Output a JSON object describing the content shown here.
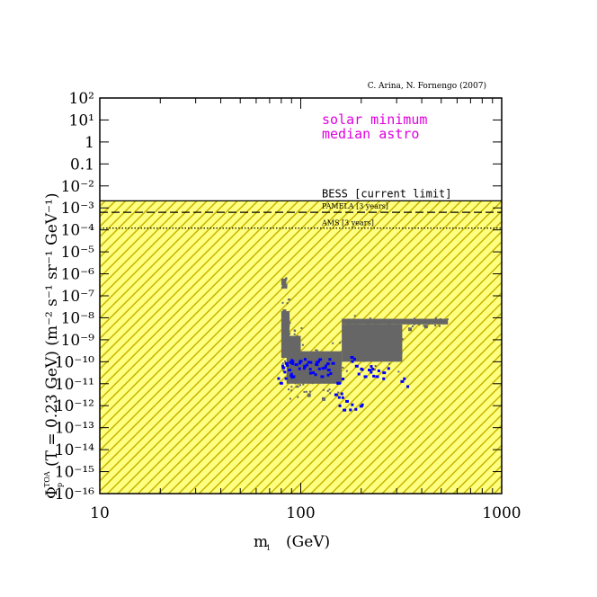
{
  "chart_data": {
    "type": "scatter",
    "credit": "C. Arina, N. Fornengo (2007)",
    "xlabel": "m_1 (GeV)",
    "ylabel": "Φ_p̄^TOA (T_p̄ = 0.23 GeV) (m^-2 s^-1 sr^-1 GeV^-1)",
    "xlabel_main": "m",
    "xlabel_sub": "1",
    "xlabel_unit": "(GeV)",
    "ylabel_phi": "Φ",
    "ylabel_sup": "TOA",
    "ylabel_sub": "p",
    "ylabel_rest": "(T  = 0.23 GeV)   (m⁻² s⁻¹ sr⁻¹ GeV⁻¹)",
    "x_scale": "log",
    "y_scale": "log",
    "xlim": [
      10,
      1000
    ],
    "ylim": [
      1e-16,
      100
    ],
    "x_ticks": [
      {
        "value": 10,
        "label": "10"
      },
      {
        "value": 100,
        "label": "100"
      },
      {
        "value": 1000,
        "label": "1000"
      }
    ],
    "y_ticks": [
      {
        "exp": 2,
        "label": "10²"
      },
      {
        "exp": 1,
        "label": "10¹"
      },
      {
        "exp": 0,
        "label": "1"
      },
      {
        "exp": -1,
        "label": "0.1"
      },
      {
        "exp": -2,
        "label": "10⁻²"
      },
      {
        "exp": -3,
        "label": "10⁻³"
      },
      {
        "exp": -4,
        "label": "10⁻⁴"
      },
      {
        "exp": -5,
        "label": "10⁻⁵"
      },
      {
        "exp": -6,
        "label": "10⁻⁶"
      },
      {
        "exp": -7,
        "label": "10⁻⁷"
      },
      {
        "exp": -8,
        "label": "10⁻⁸"
      },
      {
        "exp": -9,
        "label": "10⁻⁹"
      },
      {
        "exp": -10,
        "label": "10⁻¹⁰"
      },
      {
        "exp": -11,
        "label": "10⁻¹¹"
      },
      {
        "exp": -12,
        "label": "10⁻¹²"
      },
      {
        "exp": -13,
        "label": "10⁻¹³"
      },
      {
        "exp": -14,
        "label": "10⁻¹⁴"
      },
      {
        "exp": -15,
        "label": "10⁻¹⁵"
      },
      {
        "exp": -16,
        "label": "10⁻¹⁶"
      }
    ],
    "legend": [
      "solar minimum",
      "median astro"
    ],
    "colors": {
      "legend": "#e000e0",
      "shade_fill": "#ffff80",
      "shade_hatch": "#c8b400",
      "gray_points": "#666666",
      "blue_points": "#0000ff"
    },
    "limits": [
      {
        "name": "BESS",
        "label": "BESS [current limit]",
        "value": 0.0021,
        "style": "solid"
      },
      {
        "name": "PAMELA",
        "label": "PAMELA [3 years]",
        "value": 0.00063,
        "style": "dashed"
      },
      {
        "name": "AMS",
        "label": "AMS [3 years]",
        "value": 0.00012,
        "style": "dotted"
      }
    ],
    "excluded_region": {
      "description": "shaded below BESS limit",
      "y_max": 0.0021
    },
    "series": [
      {
        "name": "gray scan points",
        "regions": [
          {
            "x_range": [
              80,
              84
            ],
            "y_range": [
              3e-07,
              6e-07
            ]
          },
          {
            "x_range": [
              80,
              88
            ],
            "y_range": [
              1.5e-10,
              2e-08
            ]
          },
          {
            "x_range": [
              85,
              100
            ],
            "y_range": [
              1e-11,
              1.5e-09
            ]
          },
          {
            "x_range": [
              100,
              160
            ],
            "y_range": [
              1e-11,
              3e-10
            ]
          },
          {
            "x_range": [
              160,
              540
            ],
            "y_range": [
              5e-09,
              9e-09
            ]
          },
          {
            "x_range": [
              160,
              320
            ],
            "y_range": [
              1e-10,
              5e-09
            ]
          }
        ],
        "points": [
          {
            "x": 82,
            "y": 5e-07
          },
          {
            "x": 83,
            "y": 2e-08
          },
          {
            "x": 86,
            "y": 3e-09
          },
          {
            "x": 90,
            "y": 1e-09
          },
          {
            "x": 95,
            "y": 6e-10
          },
          {
            "x": 110,
            "y": 3e-12
          },
          {
            "x": 130,
            "y": 2e-12
          },
          {
            "x": 170,
            "y": 4e-09
          },
          {
            "x": 200,
            "y": 2e-09
          },
          {
            "x": 250,
            "y": 1e-09
          },
          {
            "x": 300,
            "y": 1.5e-09
          },
          {
            "x": 350,
            "y": 3e-09
          },
          {
            "x": 420,
            "y": 4e-09
          }
        ]
      },
      {
        "name": "blue points",
        "points": [
          {
            "x": 80,
            "y": 1e-11
          },
          {
            "x": 82,
            "y": 5e-11
          },
          {
            "x": 85,
            "y": 8e-11
          },
          {
            "x": 88,
            "y": 4e-11
          },
          {
            "x": 92,
            "y": 2e-11
          },
          {
            "x": 95,
            "y": 7e-11
          },
          {
            "x": 100,
            "y": 1e-10
          },
          {
            "x": 105,
            "y": 6e-11
          },
          {
            "x": 110,
            "y": 9e-11
          },
          {
            "x": 115,
            "y": 3e-11
          },
          {
            "x": 120,
            "y": 7e-11
          },
          {
            "x": 125,
            "y": 1.2e-10
          },
          {
            "x": 128,
            "y": 2e-11
          },
          {
            "x": 132,
            "y": 5e-11
          },
          {
            "x": 138,
            "y": 4e-11
          },
          {
            "x": 145,
            "y": 8e-11
          },
          {
            "x": 150,
            "y": 3e-12
          },
          {
            "x": 155,
            "y": 1e-11
          },
          {
            "x": 165,
            "y": 6e-13
          },
          {
            "x": 170,
            "y": 1.5e-12
          },
          {
            "x": 180,
            "y": 1.5e-10
          },
          {
            "x": 190,
            "y": 6e-11
          },
          {
            "x": 200,
            "y": 9e-13
          },
          {
            "x": 210,
            "y": 2e-11
          },
          {
            "x": 220,
            "y": 4e-11
          },
          {
            "x": 240,
            "y": 2e-11
          },
          {
            "x": 260,
            "y": 3e-11
          },
          {
            "x": 320,
            "y": 1.2e-11
          }
        ]
      }
    ]
  }
}
